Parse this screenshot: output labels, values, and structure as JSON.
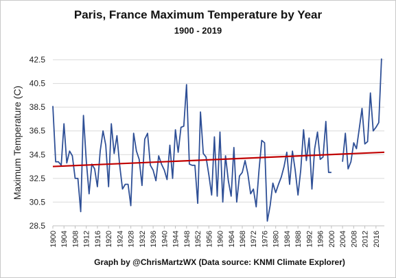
{
  "header": {
    "title": "Paris, France Maximum Temperature by Year",
    "subtitle": "1900 - 2019"
  },
  "footer": {
    "credit": "Graph by @ChrisMartzWX (Data source:  KNMI Climate Explorer)"
  },
  "chart_data": {
    "type": "line",
    "title": "Paris, France Maximum Temperature by Year",
    "subtitle": "1900 - 2019",
    "xlabel": "",
    "ylabel": "Maximum Temperature  (C)",
    "xlim": [
      1900,
      2019
    ],
    "ylim": [
      28.5,
      42.5
    ],
    "y_ticks": [
      28.5,
      30.5,
      32.5,
      34.5,
      36.5,
      38.5,
      40.5,
      42.5
    ],
    "x_ticks": [
      1900,
      1904,
      1908,
      1912,
      1916,
      1920,
      1924,
      1928,
      1932,
      1936,
      1940,
      1944,
      1948,
      1952,
      1956,
      1960,
      1964,
      1968,
      1972,
      1976,
      1980,
      1984,
      1988,
      1992,
      1996,
      2000,
      2004,
      2008,
      2012,
      2016
    ],
    "grid": {
      "x": false,
      "y": true
    },
    "legend": "none",
    "series": [
      {
        "color": "#2e4f96",
        "x": [
          1900,
          1901,
          1902,
          1903,
          1904,
          1905,
          1906,
          1907,
          1908,
          1909,
          1910,
          1911,
          1912,
          1913,
          1914,
          1915,
          1916,
          1917,
          1918,
          1919,
          1920,
          1921,
          1922,
          1923,
          1924,
          1925,
          1926,
          1927,
          1928,
          1929,
          1930,
          1931,
          1932,
          1933,
          1934,
          1935,
          1936,
          1937,
          1938,
          1939,
          1940,
          1941,
          1942,
          1943,
          1944,
          1945,
          1946,
          1947,
          1948,
          1949,
          1950,
          1951,
          1952,
          1953,
          1954,
          1955,
          1956,
          1957,
          1958,
          1959,
          1960,
          1961,
          1962,
          1963,
          1964,
          1965,
          1966,
          1967,
          1968,
          1969,
          1970,
          1971,
          1972,
          1973,
          1974,
          1975,
          1976,
          1977,
          1978,
          1979,
          1980,
          1981,
          1982,
          1983,
          1984,
          1985,
          1986,
          1987,
          1988,
          1989,
          1990,
          1991,
          1992,
          1993,
          1994,
          1995,
          1996,
          1997,
          1998,
          1999,
          2000,
          2001,
          2002,
          2003,
          2004,
          2005,
          2006,
          2007,
          2008,
          2009,
          2010,
          2011,
          2012,
          2013,
          2014,
          2015,
          2016,
          2017,
          2018,
          2019
        ],
        "values": [
          38.6,
          33.9,
          33.9,
          33.6,
          37.1,
          33.8,
          34.8,
          34.4,
          32.5,
          32.5,
          29.7,
          37.8,
          34.0,
          31.2,
          33.7,
          33.3,
          31.8,
          34.8,
          36.5,
          35.3,
          31.8,
          37.1,
          34.6,
          36.1,
          33.6,
          31.6,
          32.0,
          32.0,
          30.2,
          36.3,
          34.8,
          34.1,
          31.9,
          35.8,
          36.3,
          33.6,
          33.2,
          32.3,
          34.4,
          33.7,
          33.2,
          32.4,
          35.3,
          32.5,
          36.6,
          34.7,
          36.8,
          36.9,
          40.4,
          33.7,
          33.6,
          33.6,
          30.4,
          38.1,
          34.6,
          34.3,
          32.8,
          31.1,
          36.0,
          31.0,
          36.4,
          30.5,
          34.4,
          32.3,
          31.0,
          35.1,
          30.5,
          32.7,
          33.0,
          34.0,
          32.9,
          31.2,
          31.6,
          30.1,
          33.2,
          35.7,
          35.5,
          28.9,
          30.2,
          32.1,
          31.3,
          32.0,
          32.6,
          33.5,
          34.7,
          32.0,
          34.8,
          33.2,
          31.1,
          33.2,
          36.6,
          34.0,
          35.9,
          31.6,
          35.0,
          36.4,
          34.1,
          34.3,
          37.3,
          33.0,
          33.0,
          null,
          null,
          null,
          33.9,
          36.3,
          33.3,
          33.9,
          35.5,
          35.0,
          36.7,
          38.4,
          35.4,
          35.6,
          39.7,
          36.5,
          36.8,
          37.2,
          42.6,
          null
        ]
      }
    ],
    "trendline": {
      "color": "#c00000",
      "x": [
        1900,
        2019
      ],
      "y": [
        33.5,
        34.7
      ]
    }
  }
}
